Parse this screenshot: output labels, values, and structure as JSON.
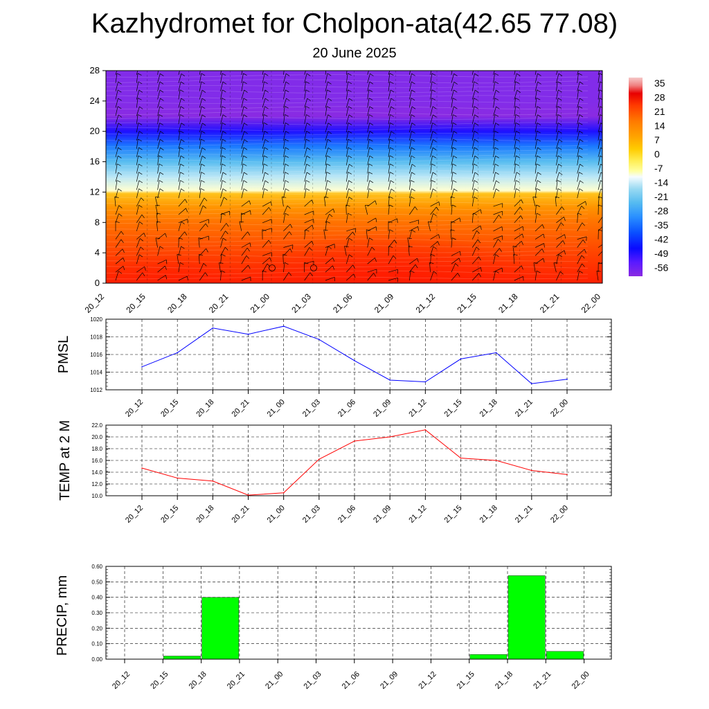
{
  "figure": {
    "title": "Kazhydromet for Cholpon-ata(42.65 77.08)",
    "subtitle": "20 June 2025"
  },
  "time_labels": [
    "20_12",
    "20_15",
    "20_18",
    "20_21",
    "21_00",
    "21_03",
    "21_06",
    "21_09",
    "21_12",
    "21_15",
    "21_18",
    "21_21",
    "22_00"
  ],
  "colorbar": {
    "labels": [
      "35",
      "28",
      "21",
      "14",
      "7",
      "0",
      "-7",
      "-14",
      "-21",
      "-28",
      "-35",
      "-42",
      "-49",
      "-56"
    ],
    "colors": [
      "#ffffff",
      "#f2c4c4",
      "#e31a1c",
      "#ff2600",
      "#ff6600",
      "#ff9900",
      "#ffcc00",
      "#ffff99",
      "#ffffff",
      "#66ccff",
      "#3399ff",
      "#0066ff",
      "#0000ff",
      "#3300ff",
      "#8a2be2"
    ]
  },
  "chart_data": [
    {
      "type": "heatmap",
      "title": "Kazhydromet for Cholpon-ata(42.65 77.08)",
      "subtitle": "20 June 2025",
      "x_categories": [
        "20_12",
        "20_15",
        "20_18",
        "20_21",
        "21_00",
        "21_03",
        "21_06",
        "21_09",
        "21_12",
        "21_15",
        "21_18",
        "21_21",
        "22_00"
      ],
      "ylim": [
        0,
        28
      ],
      "y_ticks": [
        0,
        4,
        8,
        12,
        16,
        20,
        24,
        28
      ],
      "color_scale_labels": [
        "35",
        "28",
        "21",
        "14",
        "7",
        "0",
        "-7",
        "-14",
        "-21",
        "-28",
        "-35",
        "-42",
        "-49",
        "-56"
      ],
      "temperature_levels": {
        "y": [
          0,
          2,
          4,
          6,
          8,
          10,
          11.8,
          12.2,
          14,
          16,
          18,
          20,
          22,
          24,
          26,
          28
        ],
        "values": [
          33,
          28,
          24,
          19,
          14,
          7,
          0,
          -14,
          -21,
          -30,
          -40,
          -50,
          -56,
          -58,
          -58,
          -58
        ]
      },
      "wind_barbs": true,
      "grid": true
    },
    {
      "type": "line",
      "ylabel": "PMSL",
      "x": [
        "20_12",
        "20_15",
        "20_18",
        "20_21",
        "21_00",
        "21_03",
        "21_06",
        "21_09",
        "21_12",
        "21_15",
        "21_18",
        "21_21",
        "22_00"
      ],
      "values": [
        1014.6,
        1016.2,
        1019.0,
        1018.3,
        1019.2,
        1017.7,
        1015.3,
        1013.1,
        1012.9,
        1015.5,
        1016.2,
        1012.7,
        1013.2
      ],
      "ylim": [
        1012,
        1020
      ],
      "y_ticks": [
        "1012",
        "1014",
        "1016",
        "1018",
        "1020"
      ],
      "color": "#0000ff",
      "grid": true
    },
    {
      "type": "line",
      "ylabel": "TEMP at 2 M",
      "x": [
        "20_12",
        "20_15",
        "20_18",
        "20_21",
        "21_00",
        "21_03",
        "21_06",
        "21_09",
        "21_12",
        "21_15",
        "21_18",
        "21_21",
        "22_00"
      ],
      "values": [
        14.7,
        13.0,
        12.5,
        10.1,
        10.5,
        16.2,
        19.3,
        20.0,
        21.2,
        16.4,
        16.0,
        14.3,
        13.6
      ],
      "ylim": [
        10,
        22
      ],
      "y_ticks": [
        "10.0",
        "12.0",
        "14.0",
        "16.0",
        "18.0",
        "20.0",
        "22.0"
      ],
      "color": "#ff0000",
      "grid": true
    },
    {
      "type": "bar",
      "ylabel": "PRECIP, mm",
      "categories": [
        "20_12",
        "20_15",
        "20_18",
        "20_21",
        "21_00",
        "21_03",
        "21_06",
        "21_09",
        "21_12",
        "21_15",
        "21_18",
        "21_21",
        "22_00"
      ],
      "values": [
        0,
        0.02,
        0.4,
        0,
        0,
        0,
        0,
        0,
        0,
        0.03,
        0.54,
        0.05,
        0
      ],
      "ylim": [
        0,
        0.6
      ],
      "y_ticks": [
        "0.00",
        "0.10",
        "0.20",
        "0.30",
        "0.40",
        "0.50",
        "0.60"
      ],
      "color": "#00ff00",
      "grid": true
    }
  ]
}
